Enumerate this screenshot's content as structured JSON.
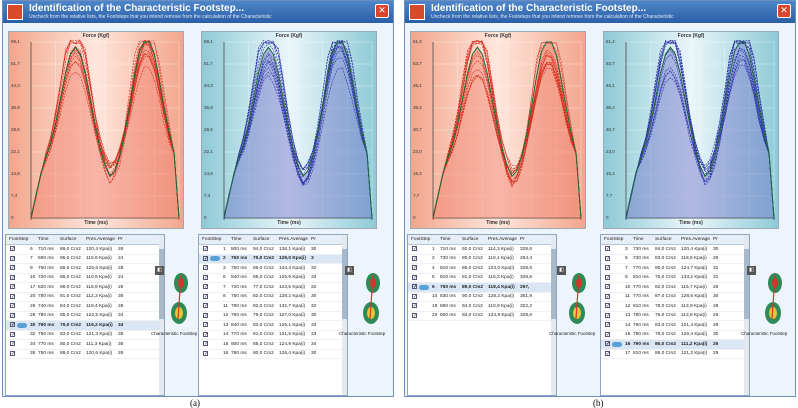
{
  "windows": [
    {
      "title": "Identification of the Characteristic Footstep...",
      "subtitle": "Uncheck from the relative lists, the Footsteps that you intend remove from the calculation of the Characteristic",
      "left_chart": {
        "title": "Force (Kgf)",
        "xlabel": "Time (ms)",
        "yticks": [
          "59,1",
          "51,7",
          "44,3",
          "36,9",
          "29,5",
          "22,1",
          "14,8",
          "7,4",
          "0"
        ]
      },
      "right_chart": {
        "title": "Force (Kgf)",
        "xlabel": "Time (ms)",
        "yticks": [
          "59,1",
          "51,7",
          "44,3",
          "36,9",
          "29,5",
          "22,1",
          "14,8",
          "7,4",
          "0"
        ]
      },
      "left_table": {
        "headers": [
          "FootStep",
          "Time",
          "Surface",
          "Pres.Average",
          "Pr"
        ],
        "rows": [
          [
            "6",
            "710 ms",
            "86,0 Cm2",
            "120,4 Kpa(i)",
            "26"
          ],
          [
            "7",
            "690 ms",
            "85,0 Cm2",
            "115,6 Kpa(i)",
            "24"
          ],
          [
            "9",
            "750 ms",
            "86,0 Cm2",
            "125,6 Kpa(i)",
            "28"
          ],
          [
            "10",
            "720 ms",
            "86,0 Cm2",
            "110,9 Kpa(i)",
            "24"
          ],
          [
            "17",
            "820 ms",
            "96,0 Cm2",
            "116,9 Kpa(i)",
            "29"
          ],
          [
            "20",
            "780 ms",
            "91,0 Cm2",
            "112,3 Kpa(i)",
            "38"
          ],
          [
            "26",
            "740 ms",
            "84,0 Cm2",
            "119,4 Kpa(i)",
            "28"
          ],
          [
            "28",
            "780 ms",
            "85,0 Cm2",
            "122,5 Kpa(i)",
            "34"
          ],
          [
            "30",
            "790 ms",
            "79,0 Cm2",
            "119,2 Kpa(i)",
            "34"
          ],
          [
            "32",
            "790 ms",
            "83,0 Cm2",
            "121,3 Kpa(i)",
            "35"
          ],
          [
            "34",
            "770 ms",
            "80,0 Cm2",
            "111,3 Kpa(i)",
            "36"
          ],
          [
            "35",
            "750 ms",
            "88,0 Cm2",
            "120,6 Kpa(i)",
            "26"
          ]
        ],
        "selected_row": 8
      },
      "right_table": {
        "headers": [
          "FootStep",
          "Time",
          "Surface",
          "Pres.Average",
          "Pr"
        ],
        "rows": [
          [
            "1",
            "800 ms",
            "94,0 Cm2",
            "136,1 Kpa(i)",
            "30"
          ],
          [
            "2",
            "750 ms",
            "75,0 Cm2",
            "129,0 Kpa(i)",
            "3"
          ],
          [
            "3",
            "750 ms",
            "86,0 Cm2",
            "134,3 Kpa(i)",
            "32"
          ],
          [
            "6",
            "840 ms",
            "85,0 Cm2",
            "125,9 Kpa(i)",
            "33"
          ],
          [
            "7",
            "720 ms",
            "77,0 Cm2",
            "123,5 Kpa(i)",
            "32"
          ],
          [
            "8",
            "750 ms",
            "82,0 Cm2",
            "128,2 Kpa(i)",
            "30"
          ],
          [
            "11",
            "790 ms",
            "82,0 Cm2",
            "132,7 Kpa(i)",
            "32"
          ],
          [
            "12",
            "760 ms",
            "76,0 Cm2",
            "127,0 Kpa(i)",
            "30"
          ],
          [
            "13",
            "840 ms",
            "83,0 Cm2",
            "125,1 Kpa(i)",
            "33"
          ],
          [
            "14",
            "770 ms",
            "81,0 Cm2",
            "121,5 Kpa(i)",
            "33"
          ],
          [
            "15",
            "800 ms",
            "85,0 Cm2",
            "124,9 Kpa(i)",
            "34"
          ],
          [
            "16",
            "790 ms",
            "80,0 Cm2",
            "126,4 Kpa(i)",
            "30"
          ]
        ],
        "selected_row": 1
      },
      "footprint_label": "Characteristic Footstep",
      "caption": "(a)"
    },
    {
      "title": "Identification of the Characteristic Footstep...",
      "subtitle": "Uncheck from the relative lists, the Footsteps that you intend remove from the calculation of the Characteristic",
      "left_chart": {
        "title": "Force (Kgf)",
        "xlabel": "Time (ms)",
        "yticks": [
          "61,4",
          "53,7",
          "46,1",
          "38,4",
          "30,7",
          "23,0",
          "15,4",
          "7,7",
          "0"
        ]
      },
      "right_chart": {
        "title": "Force (Kgf)",
        "xlabel": "Time (ms)",
        "yticks": [
          "61,4",
          "53,7",
          "46,1",
          "38,4",
          "30,7",
          "23,0",
          "15,4",
          "7,7",
          "0"
        ]
      },
      "left_table": {
        "headers": [
          "FootStep",
          "Time",
          "Surface",
          "Pres.Average",
          "Pr"
        ],
        "rows": [
          [
            "1",
            "710 ms",
            "92,0 Cm2",
            "114,3 Kpa(i)",
            "328,6"
          ],
          [
            "2",
            "730 ms",
            "80,0 Cm2",
            "118,1 Kpa(i)",
            "264,4"
          ],
          [
            "4",
            "810 ms",
            "85,0 Cm2",
            "123,0 Kpa(i)",
            "328,6"
          ],
          [
            "5",
            "810 ms",
            "81,0 Cm2",
            "115,3 Kpa(i)",
            "328,6"
          ],
          [
            "6",
            "750 ms",
            "89,0 Cm2",
            "118,4 Kpa(i)",
            "297,"
          ],
          [
            "10",
            "830 ms",
            "90,0 Cm2",
            "128,2 Kpa(i)",
            "361,9"
          ],
          [
            "19",
            "860 ms",
            "94,0 Cm2",
            "110,9 Kpa(i)",
            "322,2"
          ],
          [
            "23",
            "800 ms",
            "94,0 Cm2",
            "124,9 Kpa(i)",
            "328,6"
          ]
        ],
        "selected_row": 4
      },
      "right_table": {
        "headers": [
          "FootStep",
          "Time",
          "Surface",
          "Pres.Average",
          "Pr"
        ],
        "rows": [
          [
            "3",
            "730 ms",
            "84,0 Cm2",
            "120,4 Kpa(i)",
            "30"
          ],
          [
            "5",
            "730 ms",
            "83,0 Cm2",
            "118,6 Kpa(i)",
            "29"
          ],
          [
            "7",
            "770 ms",
            "90,0 Cm2",
            "124,7 Kpa(i)",
            "31"
          ],
          [
            "8",
            "810 ms",
            "75,0 Cm2",
            "133,2 Kpa(i)",
            "31"
          ],
          [
            "10",
            "770 ms",
            "62,0 Cm2",
            "115,7 Kpa(i)",
            "29"
          ],
          [
            "11",
            "770 ms",
            "87,0 Cm2",
            "128,6 Kpa(i)",
            "30"
          ],
          [
            "12",
            "810 ms",
            "78,0 Cm2",
            "113,9 Kpa(i)",
            "28"
          ],
          [
            "13",
            "780 ms",
            "76,0 Cm2",
            "113,8 Kpa(i)",
            "26"
          ],
          [
            "14",
            "760 ms",
            "83,0 Cm2",
            "121,4 Kpa(i)",
            "28"
          ],
          [
            "15",
            "790 ms",
            "78,0 Cm2",
            "129,4 Kpa(i)",
            "30"
          ],
          [
            "16",
            "790 ms",
            "85,0 Cm2",
            "111,2 Kpa(i)",
            "26"
          ],
          [
            "17",
            "810 ms",
            "86,0 Cm2",
            "121,2 Kpa(i)",
            "29"
          ]
        ],
        "selected_row": 10
      },
      "footprint_label": "Characteristic Footstep",
      "caption": "(b)"
    }
  ],
  "colors": {
    "left_bg": "#f4a48a",
    "left_line": "#d42a1a",
    "right_bg": "#8fc9d4",
    "right_line": "#2d2fa8",
    "mean_line": "#1d6b3a"
  }
}
